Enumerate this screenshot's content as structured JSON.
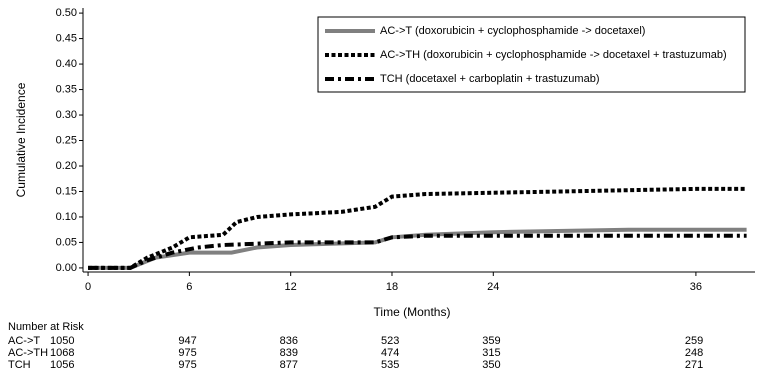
{
  "chart_data": {
    "type": "line",
    "step": true,
    "ylabel": "Cumulative Incidence",
    "xlabel": "Time (Months)",
    "xlim": [
      -0.3,
      39.5
    ],
    "ylim": [
      -0.008,
      0.51
    ],
    "xticks": [
      0,
      6,
      12,
      18,
      24,
      36
    ],
    "yticks": [
      {
        "value": 0,
        "label": "0.00"
      },
      {
        "value": 0.05,
        "label": "0.05"
      },
      {
        "value": 0.1,
        "label": "0.10"
      },
      {
        "value": 0.15,
        "label": "0.15"
      },
      {
        "value": 0.2,
        "label": "0.20"
      },
      {
        "value": 0.25,
        "label": "0.25"
      },
      {
        "value": 0.3,
        "label": "0.30"
      },
      {
        "value": 0.35,
        "label": "0.35"
      },
      {
        "value": 0.4,
        "label": "0.40"
      },
      {
        "value": 0.45,
        "label": "0.45"
      },
      {
        "value": 0.5,
        "label": "0.50"
      }
    ],
    "series": [
      {
        "name": "AC->T (doxorubicin + cyclophosphamide -> docetaxel)",
        "color": "#808080",
        "dash": "solid",
        "x": [
          0,
          2.5,
          4,
          6,
          8.5,
          10,
          12,
          17,
          18,
          20,
          24,
          32,
          39
        ],
        "values": [
          0,
          0,
          0.02,
          0.03,
          0.03,
          0.04,
          0.045,
          0.05,
          0.06,
          0.065,
          0.07,
          0.075,
          0.075
        ]
      },
      {
        "name": "AC->TH (doxorubicin + cyclophosphamide -> docetaxel + trastuzumab)",
        "color": "#000000",
        "dash": "dotted",
        "x": [
          0,
          2.5,
          3.5,
          5,
          6,
          8,
          8.8,
          10,
          12,
          15,
          17,
          18,
          20,
          28,
          36,
          39
        ],
        "values": [
          0,
          0,
          0.02,
          0.04,
          0.06,
          0.065,
          0.09,
          0.1,
          0.105,
          0.11,
          0.12,
          0.14,
          0.145,
          0.15,
          0.155,
          0.155
        ]
      },
      {
        "name": "TCH (docetaxel + carboplatin + trastuzumab)",
        "color": "#000000",
        "dash": "dashdot",
        "x": [
          0,
          2.5,
          3.5,
          5,
          6.5,
          8,
          12,
          17,
          18,
          20,
          39
        ],
        "values": [
          0,
          0,
          0.015,
          0.03,
          0.04,
          0.045,
          0.05,
          0.05,
          0.06,
          0.063,
          0.063
        ]
      }
    ],
    "risk_table": {
      "title": "Number at Risk",
      "rows": [
        {
          "label": "AC->T",
          "values": [
            1050,
            947,
            836,
            523,
            359,
            259
          ]
        },
        {
          "label": "AC->TH",
          "values": [
            1068,
            975,
            839,
            474,
            315,
            248
          ]
        },
        {
          "label": "TCH",
          "values": [
            1056,
            975,
            877,
            535,
            350,
            271
          ]
        }
      ]
    }
  }
}
